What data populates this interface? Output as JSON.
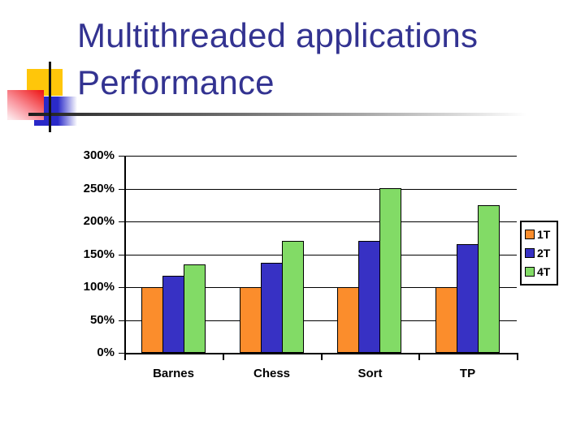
{
  "slide": {
    "title": "Multithreaded applications Performance"
  },
  "decor": {
    "yellow_square": "#FFC60A",
    "red_square": "#EE1A1A",
    "blue_square": "#2828C8",
    "cross_line": "#141414",
    "title_color": "#333391"
  },
  "chart_data": {
    "type": "bar",
    "title": "",
    "xlabel": "",
    "ylabel": "",
    "categories": [
      "Barnes",
      "Chess",
      "Sort",
      "TP"
    ],
    "series": [
      {
        "name": "1T",
        "color": "#FB8D2C",
        "values": [
          100,
          100,
          100,
          100
        ]
      },
      {
        "name": "2T",
        "color": "#3731C4",
        "values": [
          117,
          137,
          170,
          165
        ]
      },
      {
        "name": "4T",
        "color": "#82DB66",
        "values": [
          135,
          170,
          250,
          225
        ]
      }
    ],
    "value_suffix": "%",
    "ylim": [
      0,
      300
    ],
    "ytick_step": 50,
    "ytick_labels": [
      "0%",
      "50%",
      "100%",
      "150%",
      "200%",
      "250%",
      "300%"
    ],
    "grid": true,
    "gridline_color": "#000000",
    "bar_border_color": "#000000",
    "legend_position": "right",
    "legend_labels": [
      "1T",
      "2T",
      "4T"
    ]
  }
}
